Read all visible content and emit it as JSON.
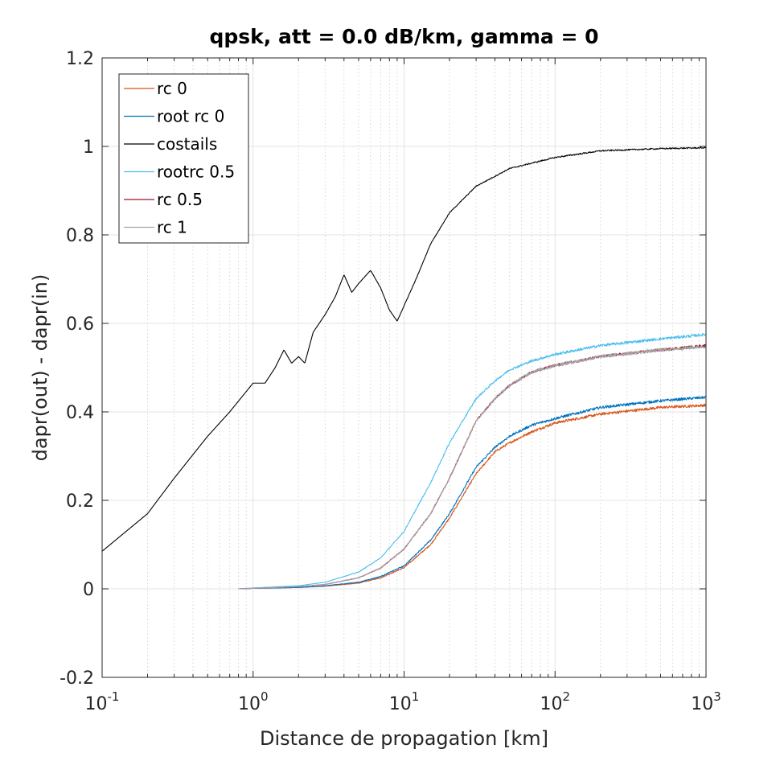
{
  "chart_data": {
    "type": "line",
    "title": "qpsk, att = 0.0 dB/km, gamma = 0",
    "xlabel": "Distance de propagation [km]",
    "ylabel": "dapr(out) - dapr(in)",
    "xscale": "log",
    "xlim": [
      0.1,
      1000
    ],
    "ylim": [
      -0.2,
      1.2
    ],
    "yticks": [
      "-0.2",
      "0",
      "0.2",
      "0.4",
      "0.6",
      "0.8",
      "1",
      "1.2"
    ],
    "xticks": [
      {
        "base": "10",
        "exp": "-1"
      },
      {
        "base": "10",
        "exp": "0"
      },
      {
        "base": "10",
        "exp": "1"
      },
      {
        "base": "10",
        "exp": "2"
      },
      {
        "base": "10",
        "exp": "3"
      }
    ],
    "grid": true,
    "legend_position": "top-left",
    "series": [
      {
        "name": "rc 0",
        "color": "#d95319",
        "noise": 0.006,
        "x": [
          0.8,
          1,
          2,
          3,
          5,
          7,
          10,
          15,
          20,
          30,
          40,
          50,
          70,
          100,
          200,
          500,
          1000
        ],
        "y": [
          0,
          0.001,
          0.003,
          0.006,
          0.013,
          0.025,
          0.048,
          0.1,
          0.16,
          0.26,
          0.31,
          0.33,
          0.355,
          0.375,
          0.395,
          0.41,
          0.415
        ]
      },
      {
        "name": "root rc 0",
        "color": "#0072bd",
        "noise": 0.006,
        "x": [
          0.8,
          1,
          2,
          3,
          5,
          7,
          10,
          15,
          20,
          30,
          40,
          50,
          70,
          100,
          200,
          500,
          1000
        ],
        "y": [
          0,
          0.001,
          0.003,
          0.007,
          0.015,
          0.028,
          0.052,
          0.11,
          0.17,
          0.275,
          0.32,
          0.345,
          0.37,
          0.385,
          0.41,
          0.425,
          0.433
        ]
      },
      {
        "name": "costails",
        "color": "#000000",
        "noise": 0.003,
        "x": [
          0.1,
          0.2,
          0.3,
          0.5,
          0.7,
          1.0,
          1.2,
          1.4,
          1.6,
          1.8,
          2.0,
          2.2,
          2.5,
          3,
          3.5,
          4,
          4.5,
          5,
          6,
          7,
          8,
          9,
          10,
          12,
          15,
          20,
          30,
          50,
          100,
          200,
          500,
          1000
        ],
        "y": [
          0.085,
          0.17,
          0.25,
          0.345,
          0.4,
          0.465,
          0.465,
          0.5,
          0.54,
          0.51,
          0.525,
          0.51,
          0.58,
          0.62,
          0.66,
          0.71,
          0.67,
          0.69,
          0.72,
          0.68,
          0.63,
          0.605,
          0.64,
          0.7,
          0.78,
          0.85,
          0.91,
          0.95,
          0.975,
          0.99,
          0.995,
          0.997
        ]
      },
      {
        "name": "rootrc 0.5",
        "color": "#4dbeee",
        "noise": 0.006,
        "x": [
          0.8,
          1,
          2,
          3,
          5,
          7,
          10,
          15,
          20,
          30,
          40,
          50,
          70,
          100,
          200,
          500,
          1000
        ],
        "y": [
          0,
          0.002,
          0.007,
          0.015,
          0.038,
          0.07,
          0.13,
          0.24,
          0.33,
          0.43,
          0.47,
          0.495,
          0.515,
          0.53,
          0.55,
          0.565,
          0.575
        ]
      },
      {
        "name": "rc 0.5",
        "color": "#a2142f",
        "noise": 0.006,
        "x": [
          0.8,
          1,
          2,
          3,
          5,
          7,
          10,
          15,
          20,
          30,
          40,
          50,
          70,
          100,
          200,
          500,
          1000
        ],
        "y": [
          0,
          0.001,
          0.005,
          0.01,
          0.025,
          0.047,
          0.09,
          0.17,
          0.25,
          0.38,
          0.43,
          0.46,
          0.49,
          0.505,
          0.525,
          0.54,
          0.55
        ]
      },
      {
        "name": "rc 1",
        "color": "#a5a5a5",
        "noise": 0.008,
        "x": [
          0.8,
          1,
          2,
          3,
          5,
          7,
          10,
          15,
          20,
          30,
          40,
          50,
          70,
          100,
          200,
          500,
          1000
        ],
        "y": [
          0,
          0.001,
          0.005,
          0.01,
          0.025,
          0.047,
          0.09,
          0.17,
          0.25,
          0.38,
          0.43,
          0.46,
          0.49,
          0.505,
          0.525,
          0.54,
          0.548
        ]
      }
    ]
  }
}
